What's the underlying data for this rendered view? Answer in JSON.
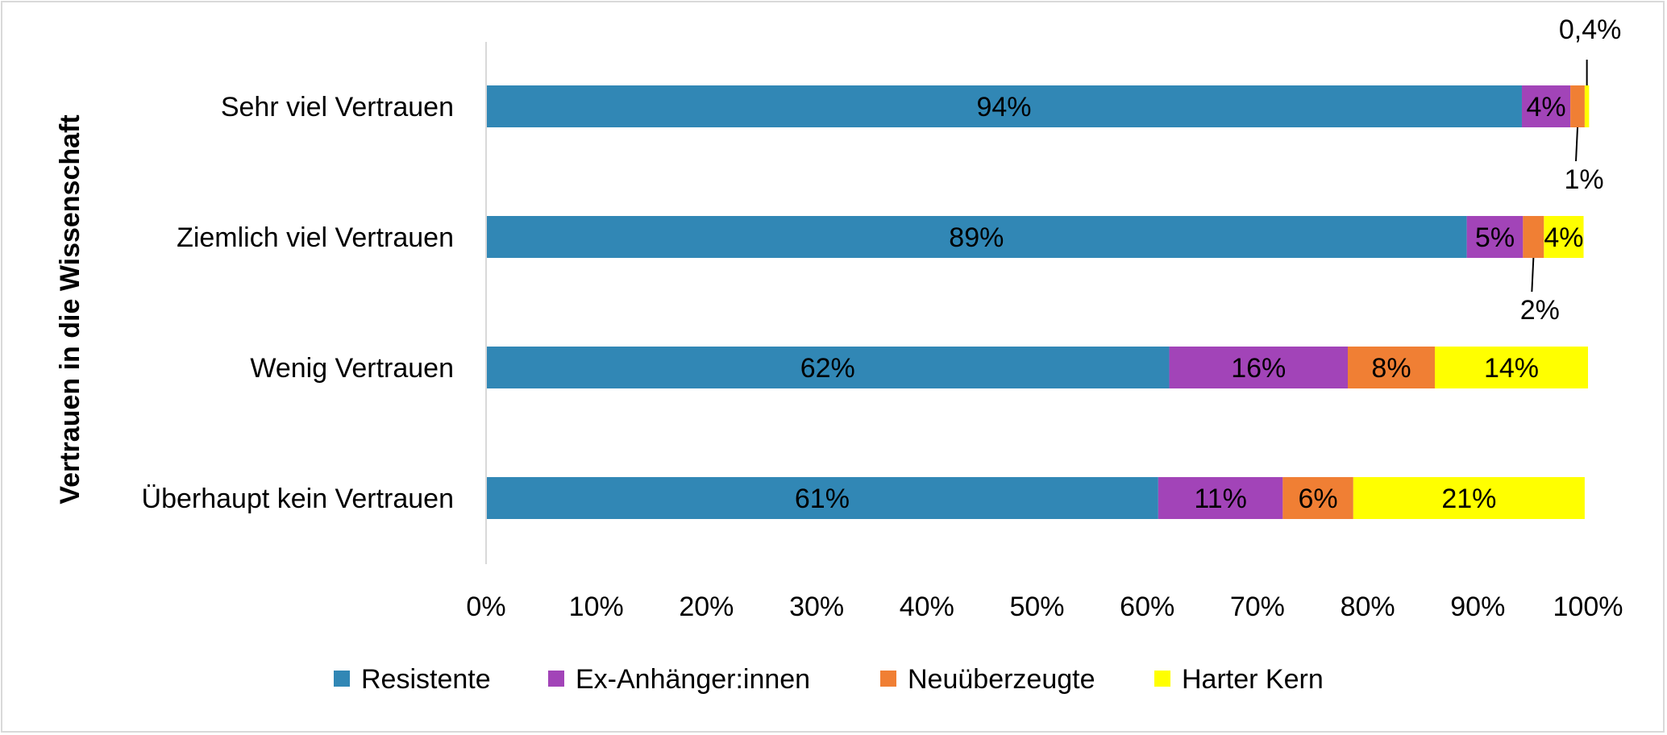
{
  "chart_data": {
    "type": "bar",
    "orientation": "horizontal",
    "stacked": true,
    "ylabel": "Vertrauen in die Wissenschaft",
    "xlabel": "",
    "xlim": [
      0,
      100
    ],
    "x_ticks": [
      "0%",
      "10%",
      "20%",
      "30%",
      "40%",
      "50%",
      "60%",
      "70%",
      "80%",
      "90%",
      "100%"
    ],
    "categories": [
      "Sehr viel Vertrauen",
      "Ziemlich viel Vertrauen",
      "Wenig Vertrauen",
      "Überhaupt kein Vertrauen"
    ],
    "series": [
      {
        "name": "Resistente",
        "color": "#3187b5",
        "values": [
          94,
          89,
          62,
          61
        ],
        "labels": [
          "94%",
          "89%",
          "62%",
          "61%"
        ]
      },
      {
        "name": "Ex-Anhänger:innen",
        "color": "#a244b8",
        "values": [
          4.4,
          5.1,
          16.2,
          11.3
        ],
        "labels": [
          "4%",
          "5%",
          "16%",
          "11%"
        ]
      },
      {
        "name": "Neuüberzeugte",
        "color": "#f07f34",
        "values": [
          1.3,
          1.9,
          7.9,
          6.4
        ],
        "labels": [
          "1%",
          "2%",
          "8%",
          "6%"
        ]
      },
      {
        "name": "Harter Kern",
        "color": "#ffff00",
        "values": [
          0.4,
          3.6,
          13.9,
          21.0
        ],
        "labels": [
          "0,4%",
          "4%",
          "14%",
          "21%"
        ]
      }
    ],
    "callouts": [
      {
        "category": 0,
        "series": 3,
        "text": "0,4%",
        "side": "above"
      },
      {
        "category": 0,
        "series": 2,
        "text": "1%",
        "side": "below"
      },
      {
        "category": 1,
        "series": 2,
        "text": "2%",
        "side": "below"
      }
    ],
    "legend": "bottom",
    "grid": false
  }
}
